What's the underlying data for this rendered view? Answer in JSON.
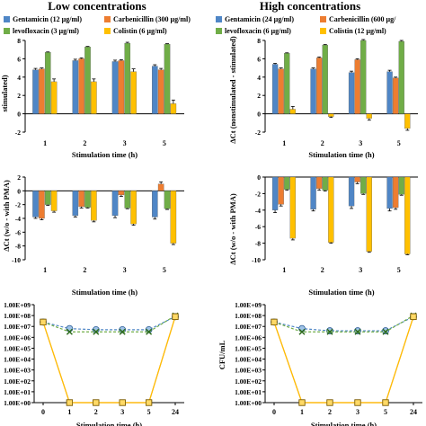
{
  "titles": {
    "left": "Low concentrations",
    "right": "High concentrations"
  },
  "colors": {
    "gentamicin": "#4f86c6",
    "carbenicillin": "#ed7d31",
    "levofloxacin": "#70ad47",
    "colistin": "#ffc000"
  },
  "legends": {
    "left": [
      "Gentamicin (12 µg/ml)",
      "Carbenicillin (300 µg/ml)",
      "levofloxacin (3 µg/ml)",
      "Colistin (6 µg/ml)"
    ],
    "right": [
      "Gentamicin (24 µg/ml)",
      "Carbenicillin (600 µg/",
      "levofloxacin (6 µg/ml)",
      "Colistin (12 µg/ml)"
    ]
  },
  "chart_data": [
    {
      "id": "low-top",
      "type": "bar",
      "categories": [
        "1",
        "2",
        "3",
        "5"
      ],
      "xlabel": "Stimulation time (h)",
      "ylabel": "stimulated)",
      "ylim": [
        -2,
        8
      ],
      "yticks": [
        -2,
        0,
        2,
        4,
        6,
        8
      ],
      "series": [
        {
          "key": "gentamicin",
          "values": [
            4.8,
            5.8,
            5.7,
            5.2
          ],
          "err": [
            0.15,
            0.15,
            0.15,
            0.15
          ]
        },
        {
          "key": "carbenicillin",
          "values": [
            4.9,
            6.0,
            5.8,
            4.8
          ],
          "err": [
            0.1,
            0.1,
            0.1,
            0.15
          ]
        },
        {
          "key": "levofloxacin",
          "values": [
            6.7,
            7.3,
            7.7,
            7.6
          ],
          "err": [
            0.05,
            0.05,
            0.1,
            0.05
          ]
        },
        {
          "key": "colistin",
          "values": [
            3.5,
            3.5,
            4.6,
            1.1
          ],
          "err": [
            0.3,
            0.3,
            0.3,
            0.4
          ]
        }
      ]
    },
    {
      "id": "high-top",
      "type": "bar",
      "categories": [
        "1",
        "2",
        "3",
        "5"
      ],
      "xlabel": "Stimulation time (h)",
      "ylabel": "ΔCt (nonstimulated - stimulated)",
      "ylim": [
        -2,
        8
      ],
      "yticks": [
        -2,
        0,
        2,
        4,
        6,
        8
      ],
      "series": [
        {
          "key": "gentamicin",
          "values": [
            5.4,
            4.9,
            4.5,
            4.6
          ],
          "err": [
            0.1,
            0.1,
            0.15,
            0.15
          ]
        },
        {
          "key": "carbenicillin",
          "values": [
            4.9,
            6.1,
            5.9,
            3.9
          ],
          "err": [
            0.1,
            0.1,
            0.1,
            0.1
          ]
        },
        {
          "key": "levofloxacin",
          "values": [
            6.6,
            7.5,
            8.0,
            7.9
          ],
          "err": [
            0.05,
            0.05,
            0.1,
            0.1
          ]
        },
        {
          "key": "colistin",
          "values": [
            0.5,
            -0.3,
            -0.5,
            -1.6
          ],
          "err": [
            0.3,
            0.1,
            0.2,
            0.2
          ]
        }
      ]
    },
    {
      "id": "low-mid",
      "type": "bar",
      "categories": [
        "1",
        "2",
        "3",
        "5"
      ],
      "xlabel": "Stimulation time (h)",
      "ylabel": "ΔCt (w/o - with PMA)",
      "ylim": [
        -10,
        2
      ],
      "yticks": [
        -10,
        -8,
        -6,
        -4,
        -2,
        0,
        2
      ],
      "series": [
        {
          "key": "gentamicin",
          "values": [
            -3.8,
            -3.6,
            -3.6,
            -3.8
          ],
          "err": [
            0.2,
            0.2,
            0.3,
            0.3
          ]
        },
        {
          "key": "carbenicillin",
          "values": [
            -4.0,
            -2.3,
            -0.6,
            1.0
          ],
          "err": [
            0.2,
            0.2,
            0.2,
            0.3
          ]
        },
        {
          "key": "levofloxacin",
          "values": [
            -2.0,
            -2.4,
            -2.5,
            -2.6
          ],
          "err": [
            0.1,
            0.1,
            0.1,
            0.1
          ]
        },
        {
          "key": "colistin",
          "values": [
            -2.9,
            -4.3,
            -4.8,
            -7.6
          ],
          "err": [
            0.2,
            0.2,
            0.2,
            0.2
          ]
        }
      ]
    },
    {
      "id": "high-mid",
      "type": "bar",
      "categories": [
        "1",
        "2",
        "3",
        "5"
      ],
      "xlabel": "Stimulation time (h)",
      "ylabel": "ΔCt (w/o - with PMA)",
      "ylim": [
        -10,
        0
      ],
      "yticks": [
        -10,
        -8,
        -6,
        -4,
        -2,
        0
      ],
      "series": [
        {
          "key": "gentamicin",
          "values": [
            -4.0,
            -3.9,
            -3.5,
            -3.8
          ],
          "err": [
            0.3,
            0.2,
            0.3,
            0.3
          ]
        },
        {
          "key": "carbenicillin",
          "values": [
            -3.3,
            -1.4,
            -0.6,
            -3.7
          ],
          "err": [
            0.2,
            0.2,
            0.2,
            0.2
          ]
        },
        {
          "key": "levofloxacin",
          "values": [
            -1.5,
            -1.6,
            -2.0,
            -2.1
          ],
          "err": [
            0.1,
            0.1,
            0.1,
            0.1
          ]
        },
        {
          "key": "colistin",
          "values": [
            -7.4,
            -7.9,
            -9.0,
            -9.3
          ],
          "err": [
            0.2,
            0.1,
            0.1,
            0.1
          ]
        }
      ]
    },
    {
      "id": "low-bottom",
      "type": "line",
      "x": [
        "0",
        "1",
        "2",
        "3",
        "5",
        "24"
      ],
      "xlabel": "Stimulation time (h)",
      "ylabel": "",
      "yscale": "log",
      "ylim": [
        0,
        9
      ],
      "yticklabels": [
        "1.00E+00",
        "1.00E+01",
        "1.00E+02",
        "1.00E+03",
        "1.00E+04",
        "1.00E+05",
        "1.00E+06",
        "1.00E+07",
        "1.00E+08",
        "1.00E+09"
      ],
      "series": [
        {
          "key": "gentamicin",
          "marker": "circle",
          "values": [
            7.4,
            6.8,
            6.7,
            6.7,
            6.7,
            7.9
          ]
        },
        {
          "key": "carbenicillin",
          "marker": "square",
          "values": [
            7.4,
            0,
            0,
            0,
            0,
            7.9
          ]
        },
        {
          "key": "levofloxacin",
          "marker": "x",
          "values": [
            7.4,
            6.5,
            6.5,
            6.5,
            6.5,
            8.0
          ]
        },
        {
          "key": "colistin",
          "marker": "square",
          "values": [
            7.4,
            0,
            0,
            0,
            0,
            7.9
          ]
        }
      ]
    },
    {
      "id": "high-bottom",
      "type": "line",
      "x": [
        "0",
        "1",
        "2",
        "3",
        "5",
        "24"
      ],
      "xlabel": "Stimulation time (h)",
      "ylabel": "CFU/mL",
      "yscale": "log",
      "ylim": [
        0,
        9
      ],
      "yticklabels": [
        "1.00E+00",
        "1.00E+01",
        "1.00E+02",
        "1.00E+03",
        "1.00E+04",
        "1.00E+05",
        "1.00E+06",
        "1.00E+07",
        "1.00E+08",
        "1.00E+09"
      ],
      "series": [
        {
          "key": "gentamicin",
          "marker": "circle",
          "values": [
            7.4,
            6.8,
            6.6,
            6.6,
            6.6,
            7.9
          ]
        },
        {
          "key": "carbenicillin",
          "marker": "square",
          "values": [
            7.4,
            0,
            0,
            0,
            0,
            7.9
          ]
        },
        {
          "key": "levofloxacin",
          "marker": "x",
          "values": [
            7.4,
            6.5,
            6.5,
            6.5,
            6.5,
            8.0
          ]
        },
        {
          "key": "colistin",
          "marker": "square",
          "values": [
            7.4,
            0,
            0,
            0,
            0,
            7.9
          ]
        }
      ]
    }
  ]
}
